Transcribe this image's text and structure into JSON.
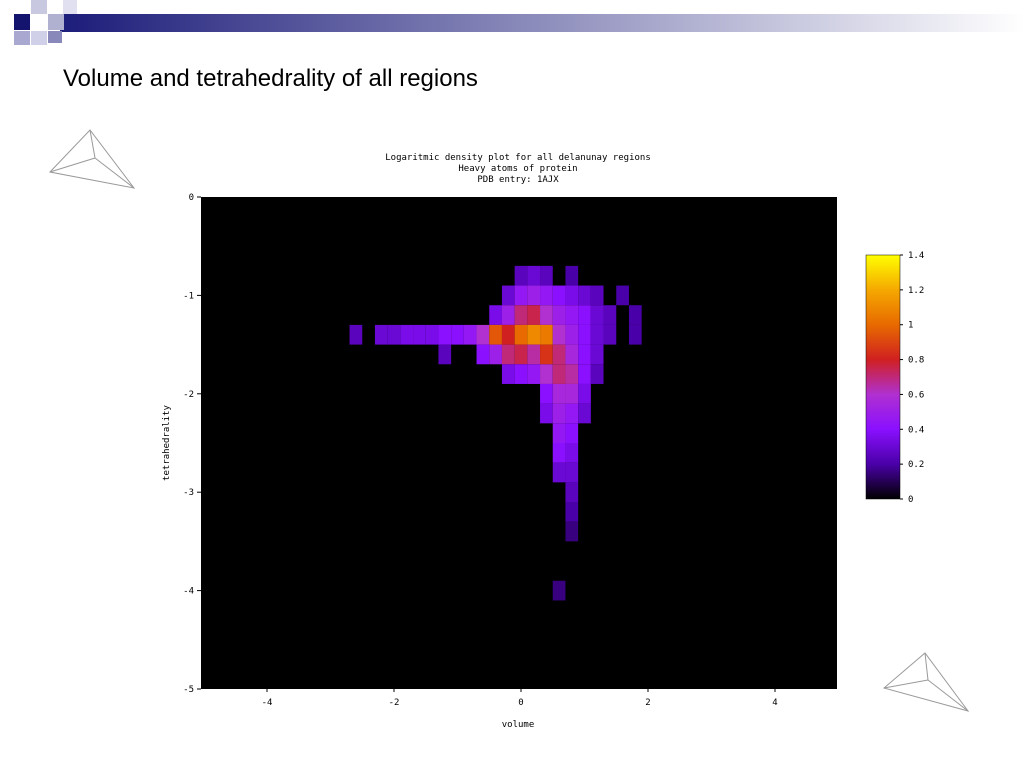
{
  "slide_title": "Volume and tetrahedrality of all regions",
  "chart_data": {
    "type": "heatmap",
    "title": [
      "Logaritmic density plot for all delanunay regions",
      "Heavy atoms of protein",
      "PDB entry: 1AJX"
    ],
    "x_label": "volume",
    "y_label": "tetrahedrality",
    "xlim": [
      -5,
      5
    ],
    "xticks": [
      -4,
      -2,
      0,
      2,
      4
    ],
    "ylim": [
      -5,
      0
    ],
    "yticks": [
      0,
      -1,
      -2,
      -3,
      -4,
      -5
    ],
    "background": "#000000",
    "x": [
      0,
      0.2,
      0.4,
      0.8,
      -0.2,
      0,
      0.2,
      0.4,
      0.6,
      0.8,
      1,
      1.2,
      1.6,
      -0.4,
      -0.2,
      0,
      0.2,
      0.4,
      0.6,
      0.8,
      1,
      1.2,
      1.4,
      1.8,
      -2.6,
      -2.2,
      -2,
      -1.8,
      -1.6,
      -1.4,
      -1.2,
      -1,
      -0.8,
      -0.6,
      -0.4,
      -0.2,
      0,
      0.2,
      0.4,
      0.6,
      0.8,
      1,
      1.2,
      1.4,
      1.8,
      -1.2,
      -0.6,
      -0.4,
      -0.2,
      0,
      0.2,
      0.4,
      0.6,
      0.8,
      1,
      1.2,
      -0.2,
      0,
      0.2,
      0.4,
      0.6,
      0.8,
      1,
      1.2,
      0.4,
      0.6,
      0.8,
      1,
      0.4,
      0.6,
      0.8,
      1,
      0.6,
      0.8,
      0.6,
      0.8,
      0.6,
      0.8,
      0.8,
      0.8,
      0.8,
      0.6
    ],
    "y": [
      -0.8,
      -0.8,
      -0.8,
      -0.8,
      -1,
      -1,
      -1,
      -1,
      -1,
      -1,
      -1,
      -1,
      -1,
      -1.2,
      -1.2,
      -1.2,
      -1.2,
      -1.2,
      -1.2,
      -1.2,
      -1.2,
      -1.2,
      -1.2,
      -1.2,
      -1.4,
      -1.4,
      -1.4,
      -1.4,
      -1.4,
      -1.4,
      -1.4,
      -1.4,
      -1.4,
      -1.4,
      -1.4,
      -1.4,
      -1.4,
      -1.4,
      -1.4,
      -1.4,
      -1.4,
      -1.4,
      -1.4,
      -1.4,
      -1.4,
      -1.6,
      -1.6,
      -1.6,
      -1.6,
      -1.6,
      -1.6,
      -1.6,
      -1.6,
      -1.6,
      -1.6,
      -1.6,
      -1.8,
      -1.8,
      -1.8,
      -1.8,
      -1.8,
      -1.8,
      -1.8,
      -1.8,
      -2,
      -2,
      -2,
      -2,
      -2.2,
      -2.2,
      -2.2,
      -2.2,
      -2.4,
      -2.4,
      -2.6,
      -2.6,
      -2.8,
      -2.8,
      -3,
      -3.2,
      -3.4,
      -4
    ],
    "values": [
      0.25,
      0.3,
      0.25,
      0.2,
      0.3,
      0.45,
      0.5,
      0.45,
      0.4,
      0.35,
      0.3,
      0.25,
      0.2,
      0.35,
      0.5,
      0.7,
      0.75,
      0.6,
      0.5,
      0.45,
      0.4,
      0.3,
      0.25,
      0.2,
      0.25,
      0.3,
      0.3,
      0.35,
      0.35,
      0.35,
      0.4,
      0.4,
      0.45,
      0.6,
      0.95,
      0.8,
      1,
      1.1,
      1.05,
      0.6,
      0.5,
      0.4,
      0.3,
      0.25,
      0.2,
      0.25,
      0.4,
      0.5,
      0.7,
      0.75,
      0.65,
      0.85,
      0.7,
      0.55,
      0.4,
      0.3,
      0.35,
      0.4,
      0.45,
      0.6,
      0.7,
      0.65,
      0.4,
      0.25,
      0.4,
      0.55,
      0.55,
      0.35,
      0.35,
      0.5,
      0.45,
      0.3,
      0.45,
      0.4,
      0.4,
      0.35,
      0.3,
      0.3,
      0.25,
      0.2,
      0.15,
      0.15
    ],
    "colorbar": {
      "lim": [
        0,
        1.4
      ],
      "ticks": [
        0,
        0.2,
        0.4,
        0.6,
        0.8,
        1,
        1.2,
        1.4
      ],
      "colors": [
        "#000000",
        "#4a00a8",
        "#8a10ff",
        "#b030d0",
        "#d02020",
        "#e86a00",
        "#f5a800",
        "#ffff00"
      ]
    }
  }
}
